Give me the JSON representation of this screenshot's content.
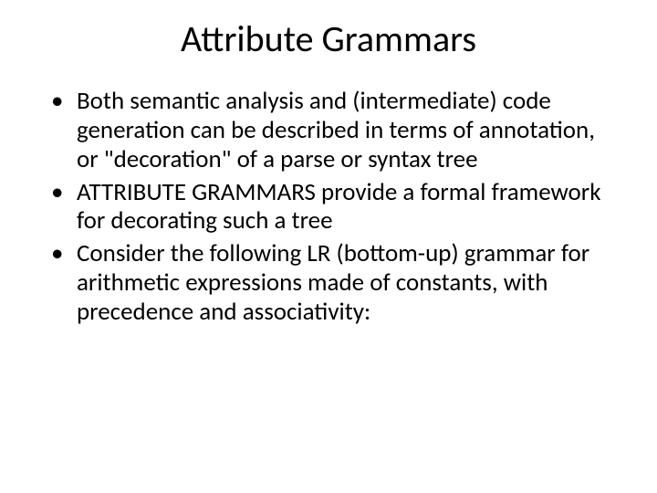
{
  "slide": {
    "background_color": "#ffffff",
    "text_color": "#000000",
    "font_family": "Calibri",
    "title": {
      "text": "Attribute Grammars",
      "fontsize": 40,
      "align": "center"
    },
    "bullets": {
      "fontsize": 27,
      "items": [
        "Both semantic analysis and (intermediate) code generation can be described in terms of annotation, or \"decoration\" of a parse or syntax tree",
        "ATTRIBUTE GRAMMARS provide a formal framework for decorating such a tree",
        "Consider the following LR (bottom-up) grammar for arithmetic expressions made of constants, with precedence and associativity:"
      ]
    }
  }
}
